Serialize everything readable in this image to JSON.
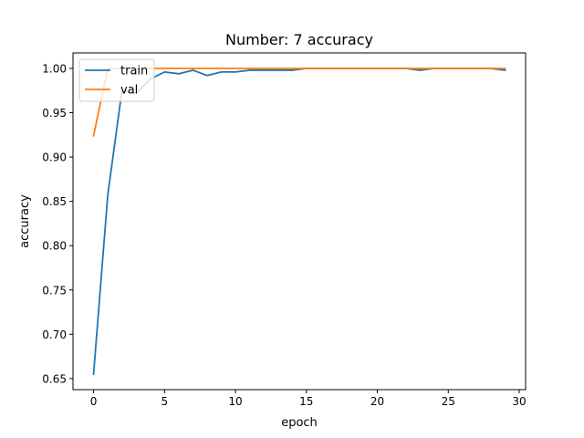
{
  "chart_data": {
    "type": "line",
    "title": "Number: 7 accuracy",
    "xlabel": "epoch",
    "ylabel": "accuracy",
    "xlim": [
      -1.45,
      30.45
    ],
    "ylim": [
      0.6375,
      1.0175
    ],
    "xticks": [
      0,
      5,
      10,
      15,
      20,
      25,
      30
    ],
    "yticks": [
      0.65,
      0.7,
      0.75,
      0.8,
      0.85,
      0.9,
      0.95,
      1.0
    ],
    "grid": false,
    "legend_position": "top-left",
    "x": [
      0,
      1,
      2,
      3,
      4,
      5,
      6,
      7,
      8,
      9,
      10,
      11,
      12,
      13,
      14,
      15,
      16,
      17,
      18,
      19,
      20,
      21,
      22,
      23,
      24,
      25,
      26,
      27,
      28,
      29
    ],
    "series": [
      {
        "name": "train",
        "color": "#1f77b4",
        "values": [
          0.655,
          0.857,
          0.975,
          0.972,
          0.988,
          0.996,
          0.994,
          0.998,
          0.992,
          0.996,
          0.996,
          0.998,
          0.998,
          0.998,
          0.998,
          1.0,
          1.0,
          1.0,
          1.0,
          1.0,
          1.0,
          1.0,
          1.0,
          0.998,
          1.0,
          1.0,
          1.0,
          1.0,
          1.0,
          0.998
        ]
      },
      {
        "name": "val",
        "color": "#ff7f0e",
        "values": [
          0.924,
          1.0,
          1.0,
          1.0,
          1.0,
          1.0,
          1.0,
          1.0,
          1.0,
          1.0,
          1.0,
          1.0,
          1.0,
          1.0,
          1.0,
          1.0,
          1.0,
          1.0,
          1.0,
          1.0,
          1.0,
          1.0,
          1.0,
          1.0,
          1.0,
          1.0,
          1.0,
          1.0,
          1.0,
          1.0
        ]
      }
    ]
  }
}
